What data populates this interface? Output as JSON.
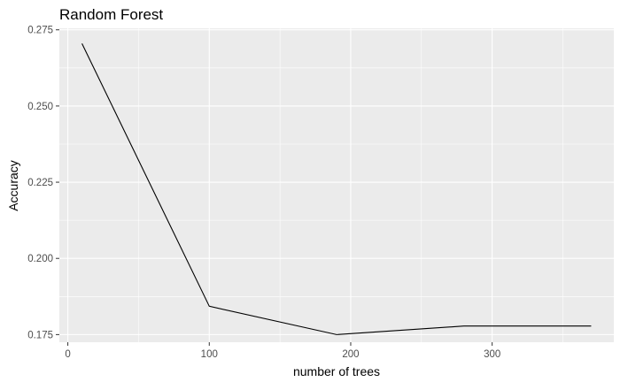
{
  "chart_data": {
    "type": "line",
    "title": "Random Forest",
    "xlabel": "number of trees",
    "ylabel": "Accuracy",
    "x": [
      10,
      100,
      190,
      280,
      370
    ],
    "y": [
      0.2705,
      0.1843,
      0.175,
      0.1778,
      0.1778
    ],
    "xlim": [
      -6,
      386
    ],
    "ylim": [
      0.1725,
      0.2755
    ],
    "xticks": [
      0,
      100,
      200,
      300
    ],
    "xtick_labels": [
      "0",
      "100",
      "200",
      "300"
    ],
    "yticks": [
      0.175,
      0.2,
      0.225,
      0.25,
      0.275
    ],
    "ytick_labels": [
      "0.175",
      "0.200",
      "0.225",
      "0.250",
      "0.275"
    ],
    "grid": true,
    "legend": "none"
  },
  "colors": {
    "panel": "#ebebeb",
    "grid": "#ffffff",
    "line": "#000000",
    "tick": "#333333"
  }
}
